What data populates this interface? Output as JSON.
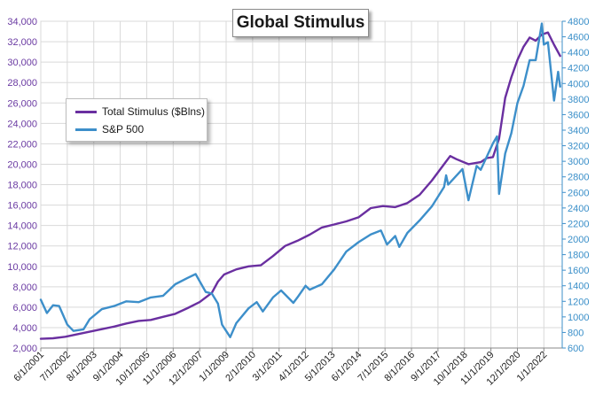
{
  "chart_data": {
    "type": "line",
    "title": "Global Stimulus",
    "legend_position": "top-left",
    "grid": true,
    "x_tick_labels": [
      "6/1/2001",
      "7/1/2002",
      "8/1/2003",
      "9/1/2004",
      "10/1/2005",
      "11/1/2006",
      "12/1/2007",
      "1/1/2009",
      "2/1/2010",
      "3/1/2011",
      "4/1/2012",
      "5/1/2013",
      "6/1/2014",
      "7/1/2015",
      "8/1/2016",
      "9/1/2017",
      "10/1/2018",
      "11/1/2019",
      "12/1/2020",
      "1/1/2022"
    ],
    "y_left": {
      "min": 2000,
      "max": 34000,
      "ticks": [
        "2,000",
        "4,000",
        "6,000",
        "8,000",
        "10,000",
        "12,000",
        "14,000",
        "16,000",
        "18,000",
        "20,000",
        "22,000",
        "24,000",
        "26,000",
        "28,000",
        "30,000",
        "32,000",
        "34,000"
      ],
      "color": "#6a3aa2"
    },
    "y_right": {
      "min": 600,
      "max": 4800,
      "ticks": [
        "600",
        "800",
        "1000",
        "1200",
        "1400",
        "1600",
        "1800",
        "2000",
        "2200",
        "2400",
        "2600",
        "2800",
        "3000",
        "3200",
        "3400",
        "3600",
        "3800",
        "4000",
        "4200",
        "4400",
        "4600",
        "4800"
      ],
      "color": "#3a8fc9"
    },
    "series": [
      {
        "name": "Total Stimulus ($Blns)",
        "axis": "left",
        "color": "#6a2fa0",
        "x": [
          "2001-06",
          "2001-12",
          "2002-06",
          "2002-12",
          "2003-06",
          "2003-12",
          "2004-06",
          "2004-12",
          "2005-06",
          "2005-12",
          "2006-06",
          "2006-12",
          "2007-06",
          "2007-12",
          "2008-06",
          "2008-09",
          "2008-12",
          "2009-06",
          "2009-12",
          "2010-06",
          "2010-12",
          "2011-06",
          "2011-12",
          "2012-06",
          "2012-12",
          "2013-06",
          "2013-12",
          "2014-06",
          "2014-12",
          "2015-06",
          "2015-12",
          "2016-06",
          "2016-12",
          "2017-06",
          "2017-12",
          "2018-03",
          "2018-06",
          "2018-12",
          "2019-06",
          "2019-09",
          "2019-12",
          "2020-03",
          "2020-06",
          "2020-09",
          "2020-12",
          "2021-03",
          "2021-06",
          "2021-09",
          "2021-12",
          "2022-03",
          "2022-06",
          "2022-09"
        ],
        "values": [
          2900,
          2950,
          3100,
          3350,
          3600,
          3850,
          4100,
          4400,
          4650,
          4750,
          5050,
          5350,
          5900,
          6500,
          7400,
          8500,
          9200,
          9700,
          10000,
          10100,
          11000,
          12000,
          12500,
          13100,
          13800,
          14100,
          14400,
          14800,
          15700,
          15900,
          15800,
          16200,
          17000,
          18400,
          20000,
          20800,
          20500,
          20000,
          20200,
          20600,
          20700,
          22500,
          26500,
          28500,
          30200,
          31500,
          32400,
          32100,
          32700,
          32900,
          31700,
          30600
        ]
      },
      {
        "name": "S&P 500",
        "axis": "right",
        "color": "#3d8fca",
        "x": [
          "2001-06",
          "2001-09",
          "2001-12",
          "2002-03",
          "2002-07",
          "2002-10",
          "2003-03",
          "2003-06",
          "2003-12",
          "2004-06",
          "2004-12",
          "2005-06",
          "2005-12",
          "2006-06",
          "2006-12",
          "2007-06",
          "2007-10",
          "2008-03",
          "2008-06",
          "2008-09",
          "2008-11",
          "2009-03",
          "2009-06",
          "2009-12",
          "2010-04",
          "2010-07",
          "2010-12",
          "2011-04",
          "2011-10",
          "2011-12",
          "2012-04",
          "2012-06",
          "2012-12",
          "2013-06",
          "2013-12",
          "2014-06",
          "2014-12",
          "2015-05",
          "2015-08",
          "2015-12",
          "2016-02",
          "2016-06",
          "2016-12",
          "2017-06",
          "2017-12",
          "2018-01",
          "2018-02",
          "2018-09",
          "2018-12",
          "2019-04",
          "2019-06",
          "2019-12",
          "2020-02",
          "2020-03",
          "2020-06",
          "2020-09",
          "2020-12",
          "2021-03",
          "2021-06",
          "2021-09",
          "2021-12",
          "2022-01",
          "2022-03",
          "2022-06",
          "2022-08",
          "2022-09"
        ],
        "values": [
          1220,
          1050,
          1150,
          1140,
          900,
          820,
          840,
          970,
          1100,
          1140,
          1200,
          1190,
          1250,
          1270,
          1420,
          1500,
          1550,
          1320,
          1300,
          1170,
          900,
          740,
          920,
          1110,
          1190,
          1070,
          1250,
          1340,
          1180,
          1250,
          1400,
          1350,
          1420,
          1610,
          1840,
          1960,
          2060,
          2110,
          1930,
          2040,
          1900,
          2080,
          2240,
          2420,
          2670,
          2820,
          2700,
          2900,
          2500,
          2940,
          2890,
          3230,
          3320,
          2580,
          3100,
          3360,
          3750,
          3970,
          4300,
          4300,
          4770,
          4500,
          4530,
          3780,
          4150,
          3960
        ]
      }
    ]
  }
}
